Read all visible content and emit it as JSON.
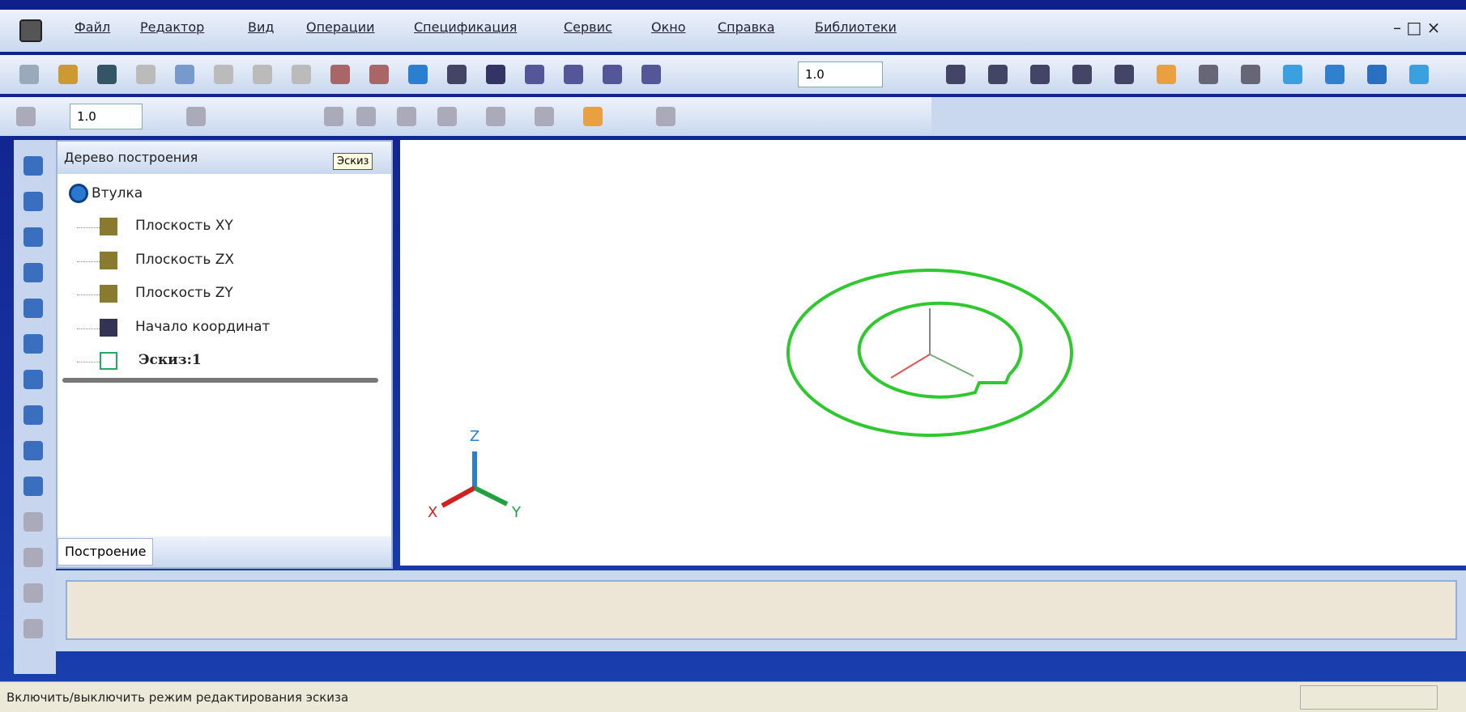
{
  "menu": [
    "Файл",
    "Редактор",
    "Вид",
    "Операции",
    "Спецификация",
    "Сервис",
    "Окно",
    "Справка",
    "Библиотеки"
  ],
  "toolbar": {
    "zoom": "1.0",
    "step": "1.0"
  },
  "tree": {
    "title": "Дерево построения",
    "tooltip": "Эскиз",
    "root": "Втулка",
    "nodes": [
      "Плоскость XY",
      "Плоскость ZX",
      "Плоскость ZY",
      "Начало координат",
      "Эскиз:1"
    ],
    "tab": "Построение"
  },
  "axes": {
    "z": "Z",
    "x": "X",
    "y": "Y"
  },
  "status": "Включить/выключить режим редактирования эскиза"
}
